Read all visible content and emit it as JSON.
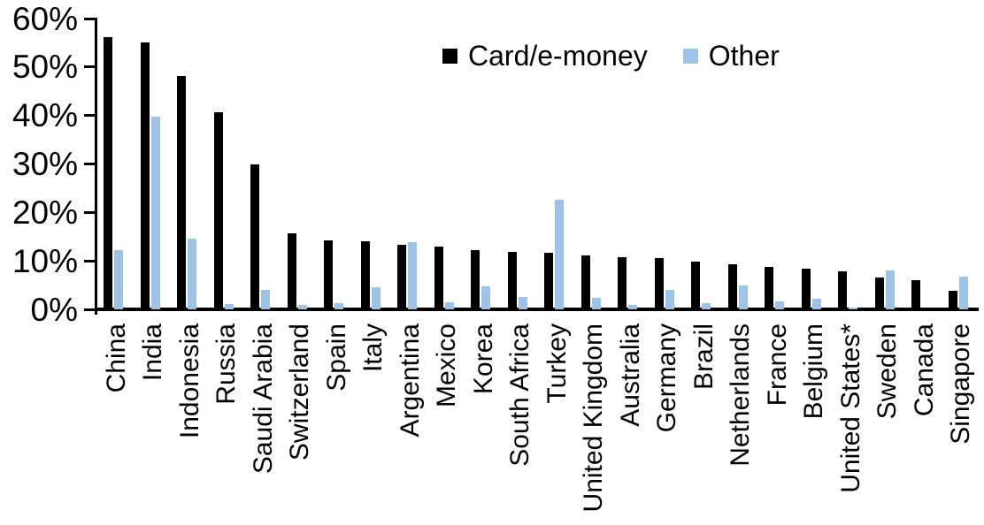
{
  "chart_data": {
    "type": "bar",
    "title": "",
    "xlabel": "",
    "ylabel": "",
    "ylim": [
      0,
      60
    ],
    "ytick_labels": [
      "0%",
      "10%",
      "20%",
      "30%",
      "40%",
      "50%",
      "60%"
    ],
    "grid": false,
    "legend_position": "top-center",
    "categories": [
      "China",
      "India",
      "Indonesia",
      "Russia",
      "Saudi Arabia",
      "Switzerland",
      "Spain",
      "Italy",
      "Argentina",
      "Mexico",
      "Korea",
      "South Africa",
      "Turkey",
      "United Kingdom",
      "Australia",
      "Germany",
      "Brazil",
      "Netherlands",
      "France",
      "Belgium",
      "United States*",
      "Sweden",
      "Canada",
      "Singapore"
    ],
    "series": [
      {
        "name": "Card/e-money",
        "color": "#000000",
        "values": [
          56.2,
          55.0,
          48.2,
          40.6,
          30.0,
          15.6,
          14.2,
          14.1,
          13.4,
          13.0,
          12.3,
          11.8,
          11.6,
          11.1,
          10.8,
          10.6,
          9.9,
          9.3,
          8.7,
          8.3,
          7.9,
          6.6,
          6.0,
          3.9
        ]
      },
      {
        "name": "Other",
        "color": "#9DC3E6",
        "values": [
          12.3,
          39.7,
          14.5,
          1.1,
          4.0,
          0.9,
          1.2,
          4.6,
          13.8,
          1.4,
          4.7,
          2.5,
          22.6,
          2.4,
          1.0,
          4.0,
          1.2,
          4.9,
          1.6,
          2.1,
          0.3,
          8.1,
          0.0,
          6.7
        ]
      }
    ]
  }
}
